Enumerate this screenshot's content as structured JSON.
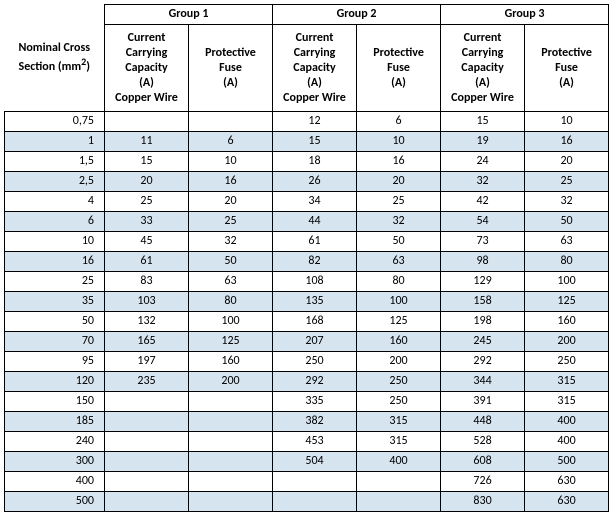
{
  "type": "table",
  "colors": {
    "background": "#ffffff",
    "stripe": "#d6e4f0",
    "border": "#000000",
    "text": "#000000"
  },
  "fonts": {
    "family": "Calibri, Arial, sans-serif",
    "header_weight": "bold",
    "size_pt": 9
  },
  "headers": {
    "row_header": "Nominal Cross Section (mm²)",
    "row_header_parts": {
      "line1": "Nominal Cross",
      "line2": "Section (mm",
      "sup": "2",
      "close": ")"
    },
    "groups": [
      "Group 1",
      "Group 2",
      "Group 3"
    ],
    "sub": {
      "capacity": "Current Carrying Capacity (A) Copper Wire",
      "capacity_parts": {
        "l1": "Current",
        "l2": "Carrying",
        "l3": "Capacity",
        "l4": "(A)",
        "l5": "Copper Wire"
      },
      "fuse": "Protective Fuse (A)",
      "fuse_parts": {
        "l1": "Protective",
        "l2": "Fuse",
        "l3": "(A)"
      }
    }
  },
  "row_labels": [
    "0,75",
    "1",
    "1,5",
    "2,5",
    "4",
    "6",
    "10",
    "16",
    "25",
    "35",
    "50",
    "70",
    "95",
    "120",
    "150",
    "185",
    "240",
    "300",
    "400",
    "500"
  ],
  "columns": [
    "g1_capacity",
    "g1_fuse",
    "g2_capacity",
    "g2_fuse",
    "g3_capacity",
    "g3_fuse"
  ],
  "rows": [
    {
      "label": "0,75",
      "g1_capacity": "",
      "g1_fuse": "",
      "g2_capacity": "12",
      "g2_fuse": "6",
      "g3_capacity": "15",
      "g3_fuse": "10"
    },
    {
      "label": "1",
      "g1_capacity": "11",
      "g1_fuse": "6",
      "g2_capacity": "15",
      "g2_fuse": "10",
      "g3_capacity": "19",
      "g3_fuse": "16"
    },
    {
      "label": "1,5",
      "g1_capacity": "15",
      "g1_fuse": "10",
      "g2_capacity": "18",
      "g2_fuse": "16",
      "g3_capacity": "24",
      "g3_fuse": "20"
    },
    {
      "label": "2,5",
      "g1_capacity": "20",
      "g1_fuse": "16",
      "g2_capacity": "26",
      "g2_fuse": "20",
      "g3_capacity": "32",
      "g3_fuse": "25"
    },
    {
      "label": "4",
      "g1_capacity": "25",
      "g1_fuse": "20",
      "g2_capacity": "34",
      "g2_fuse": "25",
      "g3_capacity": "42",
      "g3_fuse": "32"
    },
    {
      "label": "6",
      "g1_capacity": "33",
      "g1_fuse": "25",
      "g2_capacity": "44",
      "g2_fuse": "32",
      "g3_capacity": "54",
      "g3_fuse": "50"
    },
    {
      "label": "10",
      "g1_capacity": "45",
      "g1_fuse": "32",
      "g2_capacity": "61",
      "g2_fuse": "50",
      "g3_capacity": "73",
      "g3_fuse": "63"
    },
    {
      "label": "16",
      "g1_capacity": "61",
      "g1_fuse": "50",
      "g2_capacity": "82",
      "g2_fuse": "63",
      "g3_capacity": "98",
      "g3_fuse": "80"
    },
    {
      "label": "25",
      "g1_capacity": "83",
      "g1_fuse": "63",
      "g2_capacity": "108",
      "g2_fuse": "80",
      "g3_capacity": "129",
      "g3_fuse": "100"
    },
    {
      "label": "35",
      "g1_capacity": "103",
      "g1_fuse": "80",
      "g2_capacity": "135",
      "g2_fuse": "100",
      "g3_capacity": "158",
      "g3_fuse": "125"
    },
    {
      "label": "50",
      "g1_capacity": "132",
      "g1_fuse": "100",
      "g2_capacity": "168",
      "g2_fuse": "125",
      "g3_capacity": "198",
      "g3_fuse": "160"
    },
    {
      "label": "70",
      "g1_capacity": "165",
      "g1_fuse": "125",
      "g2_capacity": "207",
      "g2_fuse": "160",
      "g3_capacity": "245",
      "g3_fuse": "200"
    },
    {
      "label": "95",
      "g1_capacity": "197",
      "g1_fuse": "160",
      "g2_capacity": "250",
      "g2_fuse": "200",
      "g3_capacity": "292",
      "g3_fuse": "250"
    },
    {
      "label": "120",
      "g1_capacity": "235",
      "g1_fuse": "200",
      "g2_capacity": "292",
      "g2_fuse": "250",
      "g3_capacity": "344",
      "g3_fuse": "315"
    },
    {
      "label": "150",
      "g1_capacity": "",
      "g1_fuse": "",
      "g2_capacity": "335",
      "g2_fuse": "250",
      "g3_capacity": "391",
      "g3_fuse": "315"
    },
    {
      "label": "185",
      "g1_capacity": "",
      "g1_fuse": "",
      "g2_capacity": "382",
      "g2_fuse": "315",
      "g3_capacity": "448",
      "g3_fuse": "400"
    },
    {
      "label": "240",
      "g1_capacity": "",
      "g1_fuse": "",
      "g2_capacity": "453",
      "g2_fuse": "315",
      "g3_capacity": "528",
      "g3_fuse": "400"
    },
    {
      "label": "300",
      "g1_capacity": "",
      "g1_fuse": "",
      "g2_capacity": "504",
      "g2_fuse": "400",
      "g3_capacity": "608",
      "g3_fuse": "500"
    },
    {
      "label": "400",
      "g1_capacity": "",
      "g1_fuse": "",
      "g2_capacity": "",
      "g2_fuse": "",
      "g3_capacity": "726",
      "g3_fuse": "630"
    },
    {
      "label": "500",
      "g1_capacity": "",
      "g1_fuse": "",
      "g2_capacity": "",
      "g2_fuse": "",
      "g3_capacity": "830",
      "g3_fuse": "630"
    }
  ]
}
